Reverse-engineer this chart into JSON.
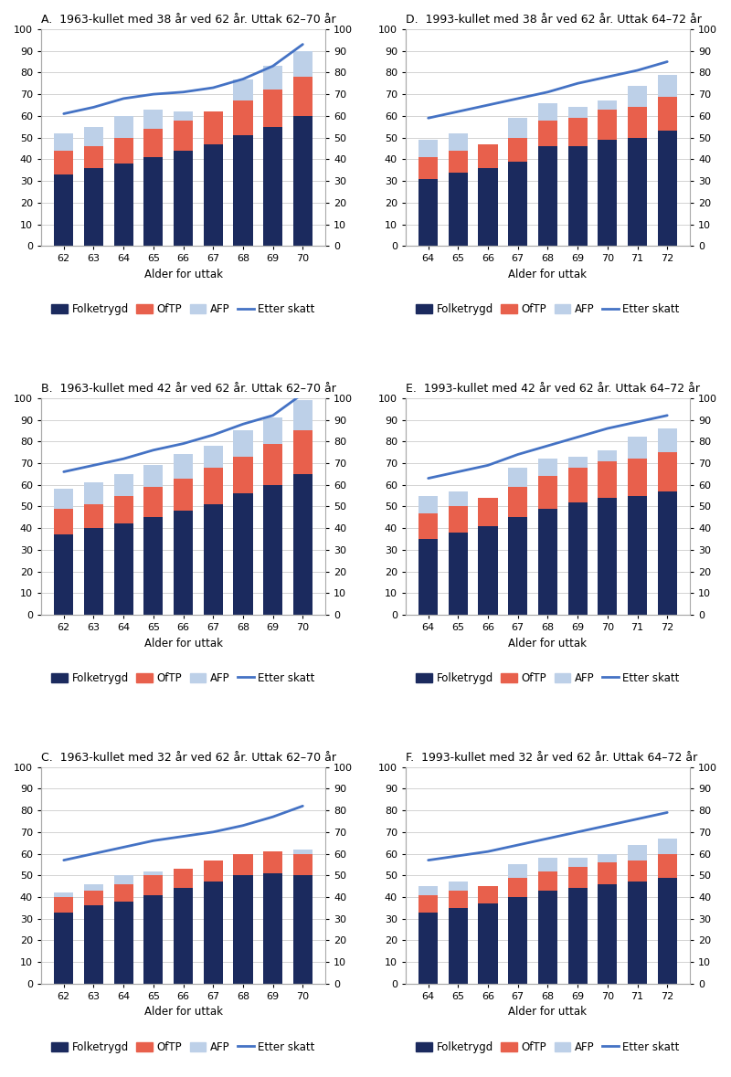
{
  "panels": [
    {
      "label": "A",
      "title": "A.  1963-kullet med 38 år ved 62 år. Uttak 62–70 år",
      "ages": [
        62,
        63,
        64,
        65,
        66,
        67,
        68,
        69,
        70
      ],
      "folketrygd": [
        33,
        36,
        38,
        41,
        44,
        47,
        51,
        55,
        60
      ],
      "oftp": [
        11,
        10,
        12,
        13,
        14,
        15,
        16,
        17,
        18
      ],
      "afp": [
        8,
        9,
        10,
        9,
        4,
        0,
        10,
        11,
        12
      ],
      "etter_skatt": [
        61,
        64,
        68,
        70,
        71,
        73,
        77,
        83,
        93
      ]
    },
    {
      "label": "D",
      "title": "D.  1993-kullet med 38 år ved 62 år. Uttak 64–72 år",
      "ages": [
        64,
        65,
        66,
        67,
        68,
        69,
        70,
        71,
        72
      ],
      "folketrygd": [
        31,
        34,
        36,
        39,
        46,
        46,
        49,
        50,
        53
      ],
      "oftp": [
        10,
        10,
        11,
        11,
        12,
        13,
        14,
        14,
        16
      ],
      "afp": [
        8,
        8,
        0,
        9,
        8,
        5,
        4,
        10,
        10
      ],
      "etter_skatt": [
        59,
        62,
        65,
        68,
        71,
        75,
        78,
        81,
        85
      ]
    },
    {
      "label": "B",
      "title": "B.  1963-kullet med 42 år ved 62 år. Uttak 62–70 år",
      "ages": [
        62,
        63,
        64,
        65,
        66,
        67,
        68,
        69,
        70
      ],
      "folketrygd": [
        37,
        40,
        42,
        45,
        48,
        51,
        56,
        60,
        65
      ],
      "oftp": [
        12,
        11,
        13,
        14,
        15,
        17,
        17,
        19,
        20
      ],
      "afp": [
        9,
        10,
        10,
        10,
        11,
        10,
        12,
        12,
        14
      ],
      "etter_skatt": [
        66,
        69,
        72,
        76,
        79,
        83,
        88,
        92,
        102
      ]
    },
    {
      "label": "E",
      "title": "E.  1993-kullet med 42 år ved 62 år. Uttak 64–72 år",
      "ages": [
        64,
        65,
        66,
        67,
        68,
        69,
        70,
        71,
        72
      ],
      "folketrygd": [
        35,
        38,
        41,
        45,
        49,
        52,
        54,
        55,
        57
      ],
      "oftp": [
        12,
        12,
        13,
        14,
        15,
        16,
        17,
        17,
        18
      ],
      "afp": [
        8,
        7,
        0,
        9,
        8,
        5,
        5,
        10,
        11
      ],
      "etter_skatt": [
        63,
        66,
        69,
        74,
        78,
        82,
        86,
        89,
        92
      ]
    },
    {
      "label": "C",
      "title": "C.  1963-kullet med 32 år ved 62 år. Uttak 62–70 år",
      "ages": [
        62,
        63,
        64,
        65,
        66,
        67,
        68,
        69,
        70
      ],
      "folketrygd": [
        33,
        36,
        38,
        41,
        44,
        47,
        50,
        51,
        50
      ],
      "oftp": [
        7,
        7,
        8,
        9,
        9,
        10,
        10,
        10,
        10
      ],
      "afp": [
        2,
        3,
        4,
        2,
        0,
        0,
        0,
        0,
        2
      ],
      "etter_skatt": [
        57,
        60,
        63,
        66,
        68,
        70,
        73,
        77,
        82
      ]
    },
    {
      "label": "F",
      "title": "F.  1993-kullet med 32 år ved 62 år. Uttak 64–72 år",
      "ages": [
        64,
        65,
        66,
        67,
        68,
        69,
        70,
        71,
        72
      ],
      "folketrygd": [
        33,
        35,
        37,
        40,
        43,
        44,
        46,
        47,
        49
      ],
      "oftp": [
        8,
        8,
        8,
        9,
        9,
        10,
        10,
        10,
        11
      ],
      "afp": [
        4,
        4,
        0,
        6,
        6,
        4,
        4,
        7,
        7
      ],
      "etter_skatt": [
        57,
        59,
        61,
        64,
        67,
        70,
        73,
        76,
        79
      ]
    }
  ],
  "colors": {
    "folketrygd": "#1b2a5e",
    "oftp": "#e8604c",
    "afp": "#bdd0e8",
    "etter_skatt": "#4472c4"
  },
  "xlabel": "Alder for uttak",
  "ylim": [
    0,
    100
  ],
  "yticks": [
    0,
    10,
    20,
    30,
    40,
    50,
    60,
    70,
    80,
    90,
    100
  ],
  "legend_labels": [
    "Folketrygd",
    "OfTP",
    "AFP",
    "Etter skatt"
  ]
}
